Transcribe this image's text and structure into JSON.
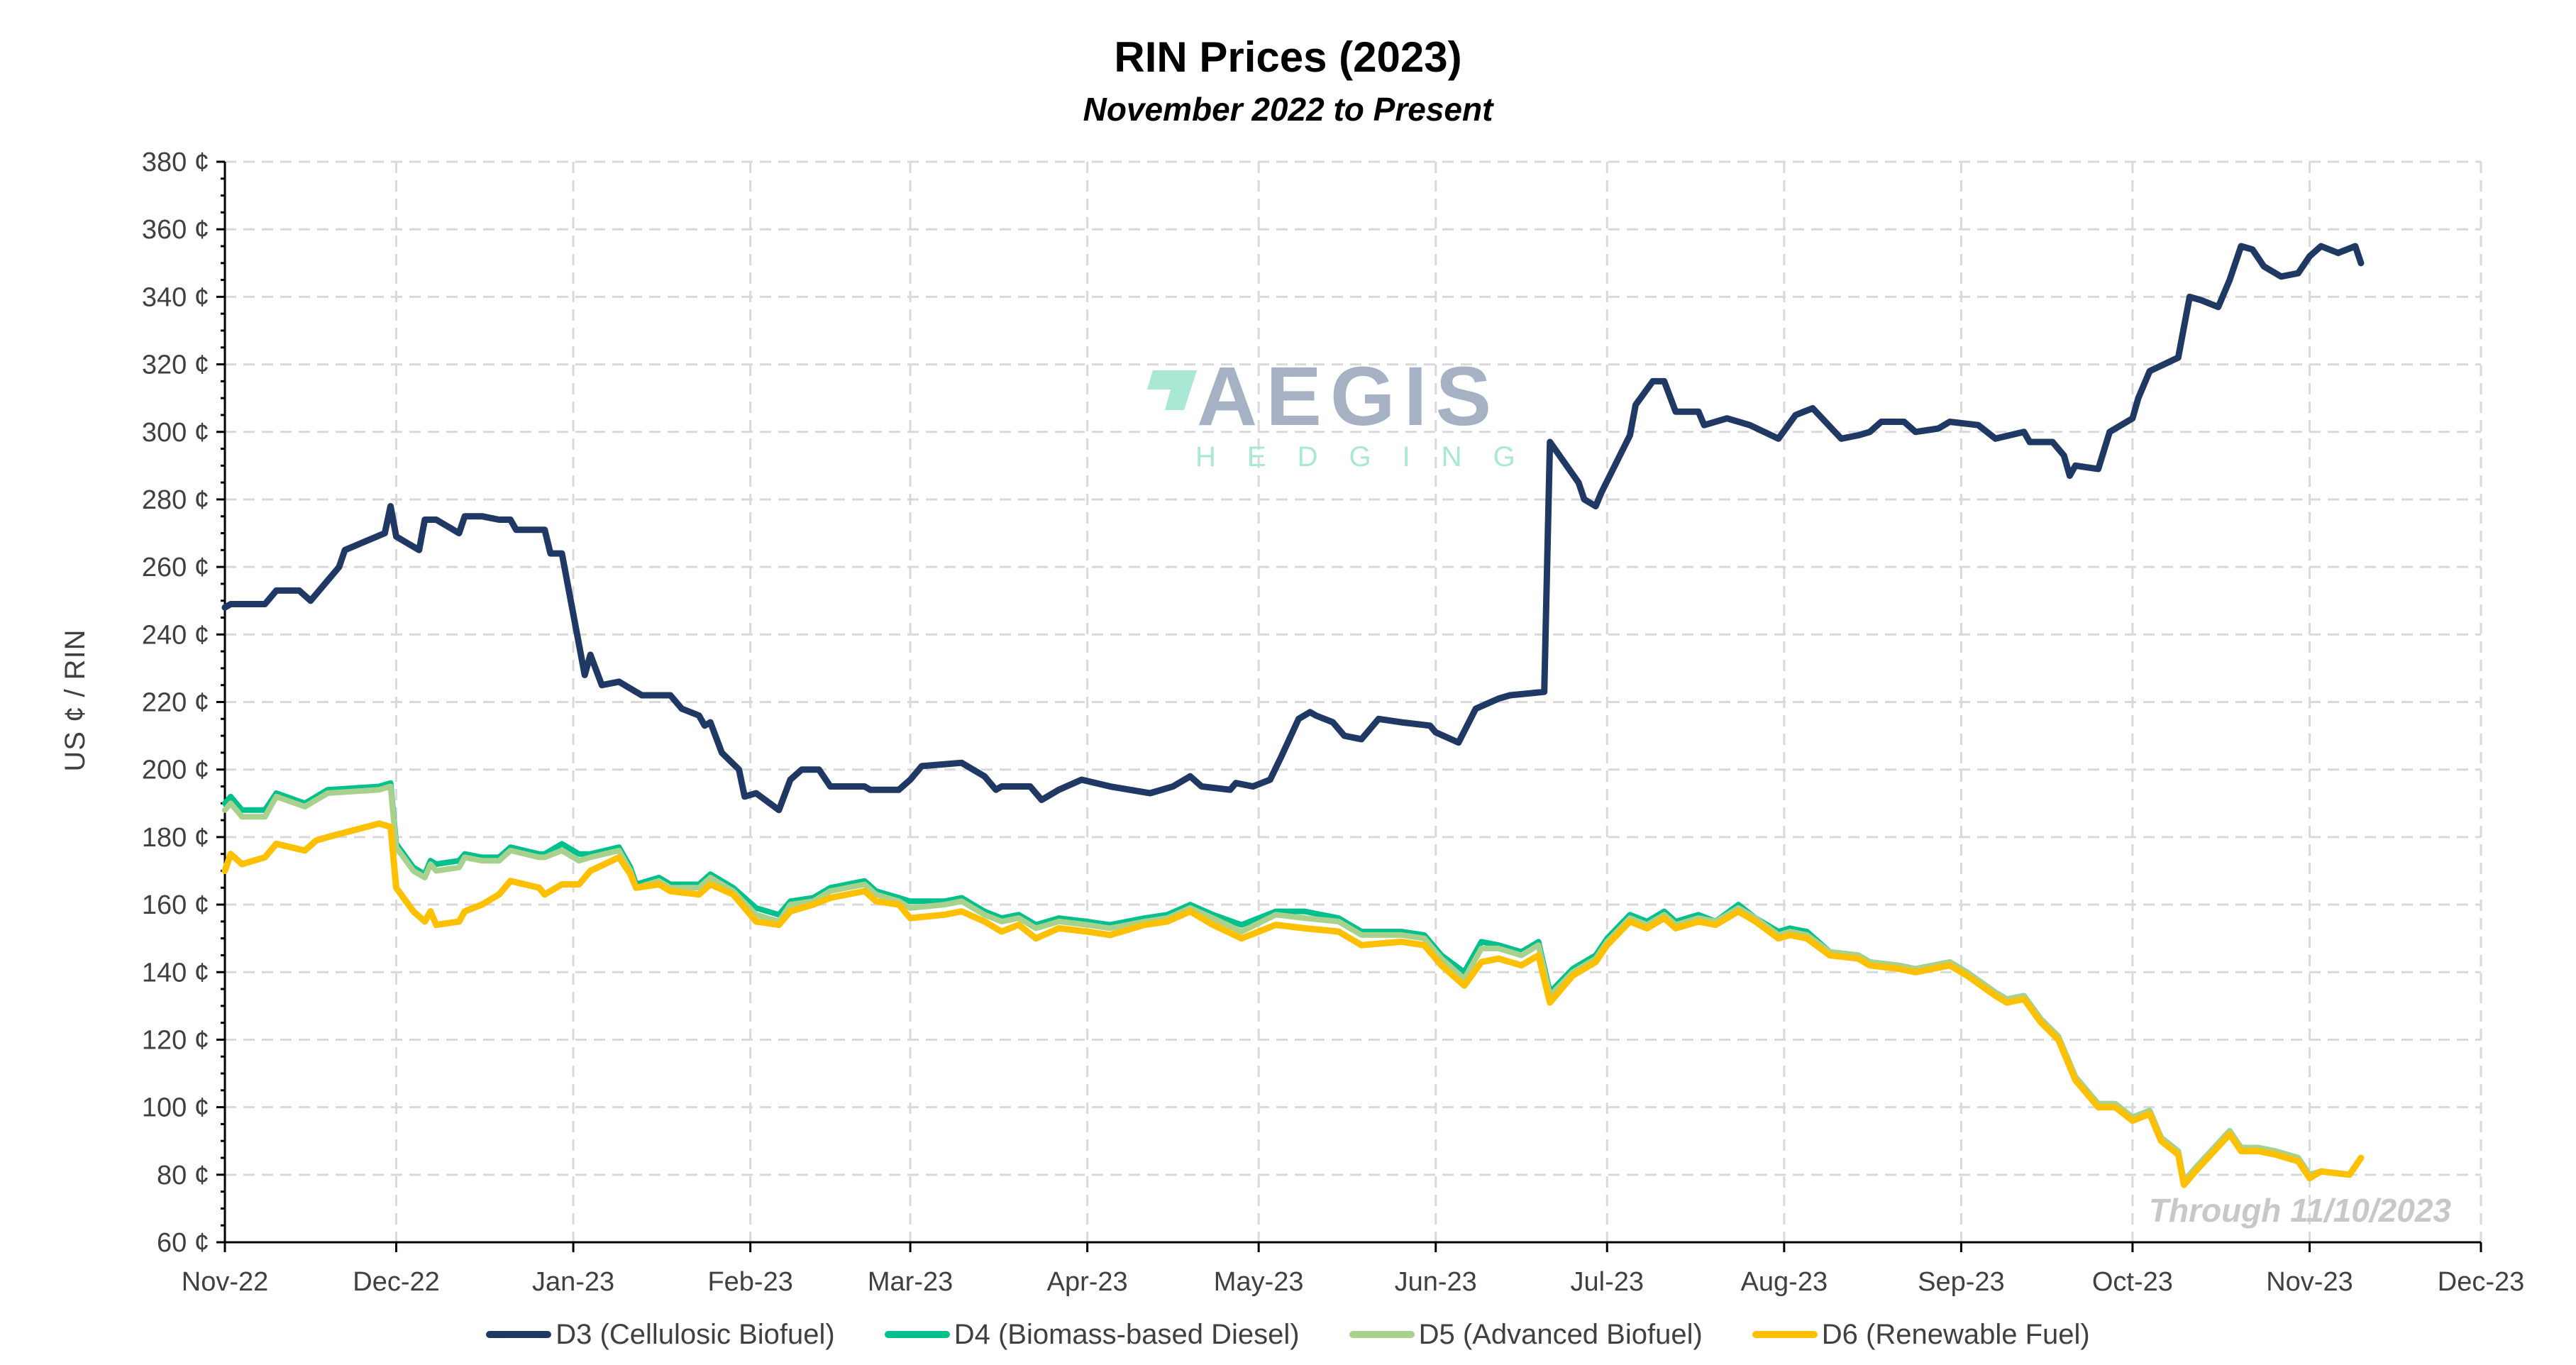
{
  "chart_data": {
    "type": "line",
    "title": "RIN Prices (2023)",
    "subtitle": "November 2022 to Present",
    "xlabel": "",
    "ylabel": "US ¢ / RIN",
    "ylim": [
      60,
      380
    ],
    "xlim": [
      "2022-11-01",
      "2023-12-01"
    ],
    "y_ticks": [
      "60 ¢",
      "80 ¢",
      "100 ¢",
      "120 ¢",
      "140 ¢",
      "160 ¢",
      "180 ¢",
      "200 ¢",
      "220 ¢",
      "240 ¢",
      "260 ¢",
      "280 ¢",
      "300 ¢",
      "320 ¢",
      "340 ¢",
      "360 ¢",
      "380 ¢"
    ],
    "x_ticks": [
      "Nov-22",
      "Dec-22",
      "Jan-23",
      "Feb-23",
      "Mar-23",
      "Apr-23",
      "May-23",
      "Jun-23",
      "Jul-23",
      "Aug-23",
      "Sep-23",
      "Oct-23",
      "Nov-23",
      "Dec-23"
    ],
    "grid": true,
    "legend_position": "bottom",
    "annotation": "Through 11/10/2023",
    "watermark": {
      "main": "AEGIS",
      "sub": "HEDGING"
    },
    "series": [
      {
        "name": "D3 (Cellulosic Biofuel)",
        "color": "#1f3864",
        "points": [
          [
            "2022-11-01",
            248
          ],
          [
            "2022-11-02",
            249
          ],
          [
            "2022-11-08",
            249
          ],
          [
            "2022-11-10",
            253
          ],
          [
            "2022-11-14",
            253
          ],
          [
            "2022-11-16",
            250
          ],
          [
            "2022-11-19",
            256
          ],
          [
            "2022-11-21",
            260
          ],
          [
            "2022-11-22",
            265
          ],
          [
            "2022-11-29",
            270
          ],
          [
            "2022-11-30",
            278
          ],
          [
            "2022-12-01",
            269
          ],
          [
            "2022-12-05",
            265
          ],
          [
            "2022-12-06",
            274
          ],
          [
            "2022-12-08",
            274
          ],
          [
            "2022-12-12",
            270
          ],
          [
            "2022-12-13",
            275
          ],
          [
            "2022-12-16",
            275
          ],
          [
            "2022-12-19",
            274
          ],
          [
            "2022-12-21",
            274
          ],
          [
            "2022-12-22",
            271
          ],
          [
            "2022-12-27",
            271
          ],
          [
            "2022-12-28",
            264
          ],
          [
            "2022-12-30",
            264
          ],
          [
            "2023-01-03",
            228
          ],
          [
            "2023-01-04",
            234
          ],
          [
            "2023-01-06",
            225
          ],
          [
            "2023-01-09",
            226
          ],
          [
            "2023-01-11",
            224
          ],
          [
            "2023-01-13",
            222
          ],
          [
            "2023-01-18",
            222
          ],
          [
            "2023-01-20",
            218
          ],
          [
            "2023-01-23",
            216
          ],
          [
            "2023-01-24",
            213
          ],
          [
            "2023-01-25",
            214
          ],
          [
            "2023-01-27",
            205
          ],
          [
            "2023-01-30",
            200
          ],
          [
            "2023-01-31",
            192
          ],
          [
            "2023-02-02",
            193
          ],
          [
            "2023-02-06",
            188
          ],
          [
            "2023-02-08",
            197
          ],
          [
            "2023-02-10",
            200
          ],
          [
            "2023-02-13",
            200
          ],
          [
            "2023-02-15",
            195
          ],
          [
            "2023-02-21",
            195
          ],
          [
            "2023-02-22",
            194
          ],
          [
            "2023-02-27",
            194
          ],
          [
            "2023-03-01",
            197
          ],
          [
            "2023-03-03",
            201
          ],
          [
            "2023-03-10",
            202
          ],
          [
            "2023-03-14",
            198
          ],
          [
            "2023-03-16",
            194
          ],
          [
            "2023-03-17",
            195
          ],
          [
            "2023-03-22",
            195
          ],
          [
            "2023-03-24",
            191
          ],
          [
            "2023-03-27",
            194
          ],
          [
            "2023-03-31",
            197
          ],
          [
            "2023-04-05",
            195
          ],
          [
            "2023-04-12",
            193
          ],
          [
            "2023-04-16",
            195
          ],
          [
            "2023-04-19",
            198
          ],
          [
            "2023-04-21",
            195
          ],
          [
            "2023-04-26",
            194
          ],
          [
            "2023-04-27",
            196
          ],
          [
            "2023-04-30",
            195
          ],
          [
            "2023-05-03",
            197
          ],
          [
            "2023-05-05",
            204
          ],
          [
            "2023-05-08",
            215
          ],
          [
            "2023-05-10",
            217
          ],
          [
            "2023-05-11",
            216
          ],
          [
            "2023-05-14",
            214
          ],
          [
            "2023-05-16",
            210
          ],
          [
            "2023-05-19",
            209
          ],
          [
            "2023-05-22",
            215
          ],
          [
            "2023-05-26",
            214
          ],
          [
            "2023-05-31",
            213
          ],
          [
            "2023-06-01",
            211
          ],
          [
            "2023-06-05",
            208
          ],
          [
            "2023-06-08",
            218
          ],
          [
            "2023-06-12",
            221
          ],
          [
            "2023-06-14",
            222
          ],
          [
            "2023-06-20",
            223
          ],
          [
            "2023-06-21",
            297
          ],
          [
            "2023-06-26",
            285
          ],
          [
            "2023-06-27",
            280
          ],
          [
            "2023-06-29",
            278
          ],
          [
            "2023-06-30",
            282
          ],
          [
            "2023-07-05",
            299
          ],
          [
            "2023-07-06",
            308
          ],
          [
            "2023-07-09",
            315
          ],
          [
            "2023-07-11",
            315
          ],
          [
            "2023-07-13",
            306
          ],
          [
            "2023-07-17",
            306
          ],
          [
            "2023-07-18",
            302
          ],
          [
            "2023-07-22",
            304
          ],
          [
            "2023-07-26",
            302
          ],
          [
            "2023-07-31",
            298
          ],
          [
            "2023-08-03",
            305
          ],
          [
            "2023-08-06",
            307
          ],
          [
            "2023-08-11",
            298
          ],
          [
            "2023-08-14",
            299
          ],
          [
            "2023-08-16",
            300
          ],
          [
            "2023-08-18",
            303
          ],
          [
            "2023-08-22",
            303
          ],
          [
            "2023-08-24",
            300
          ],
          [
            "2023-08-28",
            301
          ],
          [
            "2023-08-30",
            303
          ],
          [
            "2023-09-04",
            302
          ],
          [
            "2023-09-07",
            298
          ],
          [
            "2023-09-12",
            300
          ],
          [
            "2023-09-13",
            297
          ],
          [
            "2023-09-17",
            297
          ],
          [
            "2023-09-19",
            293
          ],
          [
            "2023-09-20",
            287
          ],
          [
            "2023-09-21",
            290
          ],
          [
            "2023-09-25",
            289
          ],
          [
            "2023-09-27",
            300
          ],
          [
            "2023-10-01",
            304
          ],
          [
            "2023-10-02",
            310
          ],
          [
            "2023-10-04",
            318
          ],
          [
            "2023-10-09",
            322
          ],
          [
            "2023-10-11",
            340
          ],
          [
            "2023-10-13",
            339
          ],
          [
            "2023-10-16",
            337
          ],
          [
            "2023-10-18",
            345
          ],
          [
            "2023-10-20",
            355
          ],
          [
            "2023-10-22",
            354
          ],
          [
            "2023-10-24",
            349
          ],
          [
            "2023-10-27",
            346
          ],
          [
            "2023-10-30",
            347
          ],
          [
            "2023-11-01",
            352
          ],
          [
            "2023-11-03",
            355
          ],
          [
            "2023-11-06",
            353
          ],
          [
            "2023-11-09",
            355
          ],
          [
            "2023-11-10",
            350
          ]
        ]
      },
      {
        "name": "D4 (Biomass-based Diesel)",
        "color": "#00c08b"
      },
      {
        "name": "D5 (Advanced Biofuel)",
        "color": "#a9d18e"
      },
      {
        "name": "D6 (Renewable Fuel)",
        "color": "#ffc000"
      }
    ],
    "shared_dates": [
      "2022-11-01",
      "2022-11-02",
      "2022-11-04",
      "2022-11-08",
      "2022-11-10",
      "2022-11-15",
      "2022-11-17",
      "2022-11-19",
      "2022-11-28",
      "2022-11-30",
      "2022-12-01",
      "2022-12-04",
      "2022-12-06",
      "2022-12-07",
      "2022-12-08",
      "2022-12-12",
      "2022-12-13",
      "2022-12-16",
      "2022-12-19",
      "2022-12-21",
      "2022-12-26",
      "2022-12-27",
      "2022-12-30",
      "2023-01-02",
      "2023-01-04",
      "2023-01-09",
      "2023-01-11",
      "2023-01-12",
      "2023-01-16",
      "2023-01-18",
      "2023-01-23",
      "2023-01-25",
      "2023-01-29",
      "2023-02-02",
      "2023-02-06",
      "2023-02-08",
      "2023-02-12",
      "2023-02-15",
      "2023-02-21",
      "2023-02-23",
      "2023-02-27",
      "2023-03-01",
      "2023-03-07",
      "2023-03-10",
      "2023-03-14",
      "2023-03-17",
      "2023-03-20",
      "2023-03-23",
      "2023-03-27",
      "2023-04-01",
      "2023-04-05",
      "2023-04-11",
      "2023-04-15",
      "2023-04-19",
      "2023-04-23",
      "2023-04-28",
      "2023-05-04",
      "2023-05-09",
      "2023-05-15",
      "2023-05-19",
      "2023-05-26",
      "2023-05-30",
      "2023-06-02",
      "2023-06-06",
      "2023-06-09",
      "2023-06-12",
      "2023-06-16",
      "2023-06-19",
      "2023-06-21",
      "2023-06-25",
      "2023-06-29",
      "2023-07-01",
      "2023-07-05",
      "2023-07-08",
      "2023-07-11",
      "2023-07-13",
      "2023-07-17",
      "2023-07-20",
      "2023-07-24",
      "2023-07-27",
      "2023-07-31",
      "2023-08-02",
      "2023-08-05",
      "2023-08-09",
      "2023-08-14",
      "2023-08-16",
      "2023-08-21",
      "2023-08-24",
      "2023-08-30",
      "2023-09-02",
      "2023-09-07",
      "2023-09-09",
      "2023-09-12",
      "2023-09-15",
      "2023-09-18",
      "2023-09-21",
      "2023-09-25",
      "2023-09-28",
      "2023-10-01",
      "2023-10-04",
      "2023-10-06",
      "2023-10-09",
      "2023-10-10",
      "2023-10-12",
      "2023-10-18",
      "2023-10-20",
      "2023-10-23",
      "2023-10-26",
      "2023-10-30",
      "2023-11-01",
      "2023-11-03",
      "2023-11-08",
      "2023-11-10"
    ],
    "shared_values": {
      "D4 (Biomass-based Diesel)": [
        190,
        192,
        188,
        188,
        193,
        190,
        192,
        194,
        195,
        196,
        178,
        171,
        169,
        173,
        172,
        173,
        175,
        174,
        174,
        177,
        175,
        175,
        178,
        175,
        175,
        177,
        171,
        166,
        168,
        166,
        166,
        169,
        165,
        159,
        157,
        161,
        162,
        165,
        167,
        164,
        162,
        161,
        161,
        162,
        158,
        156,
        157,
        154,
        156,
        155,
        154,
        156,
        157,
        160,
        157,
        154,
        158,
        158,
        156,
        152,
        152,
        151,
        145,
        140,
        149,
        148,
        146,
        149,
        134,
        141,
        145,
        150,
        157,
        155,
        158,
        155,
        157,
        155,
        160,
        156,
        152,
        153,
        152,
        146,
        145,
        143,
        142,
        141,
        143,
        140,
        134,
        132,
        133,
        126,
        121,
        109,
        101,
        101,
        97,
        99,
        91,
        87,
        78,
        82,
        93,
        88,
        88,
        87,
        85,
        80,
        81,
        80,
        85
      ],
      "D5 (Advanced Biofuel)": [
        188,
        190,
        186,
        186,
        192,
        189,
        191,
        193,
        194,
        195,
        177,
        170,
        168,
        172,
        170,
        171,
        174,
        173,
        173,
        176,
        174,
        174,
        176,
        173,
        174,
        176,
        170,
        165,
        167,
        165,
        165,
        168,
        164,
        157,
        155,
        160,
        161,
        164,
        166,
        163,
        161,
        159,
        160,
        161,
        157,
        155,
        156,
        153,
        155,
        154,
        153,
        155,
        156,
        159,
        156,
        152,
        157,
        156,
        155,
        151,
        151,
        150,
        144,
        138,
        147,
        147,
        145,
        148,
        133,
        140,
        144,
        149,
        156,
        154,
        157,
        154,
        156,
        155,
        159,
        156,
        151,
        152,
        151,
        146,
        145,
        143,
        142,
        141,
        143,
        140,
        134,
        132,
        133,
        126,
        121,
        109,
        101,
        101,
        97,
        99,
        91,
        87,
        78,
        82,
        93,
        88,
        88,
        87,
        85,
        80,
        81,
        80,
        85
      ],
      "D6 (Renewable Fuel)": [
        170,
        175,
        172,
        174,
        178,
        176,
        179,
        180,
        184,
        183,
        165,
        158,
        155,
        158,
        154,
        155,
        158,
        160,
        163,
        167,
        165,
        163,
        166,
        166,
        170,
        174,
        169,
        165,
        166,
        164,
        163,
        166,
        163,
        155,
        154,
        158,
        160,
        162,
        164,
        161,
        160,
        156,
        157,
        158,
        155,
        152,
        154,
        150,
        153,
        152,
        151,
        154,
        155,
        158,
        154,
        150,
        154,
        153,
        152,
        148,
        149,
        148,
        142,
        136,
        143,
        144,
        142,
        145,
        131,
        139,
        143,
        148,
        155,
        153,
        156,
        153,
        155,
        154,
        158,
        155,
        150,
        151,
        150,
        145,
        144,
        142,
        141,
        140,
        142,
        139,
        133,
        131,
        132,
        125,
        120,
        108,
        100,
        100,
        96,
        98,
        90,
        86,
        77,
        81,
        92,
        87,
        87,
        86,
        84,
        79,
        81,
        80,
        85
      ]
    }
  }
}
